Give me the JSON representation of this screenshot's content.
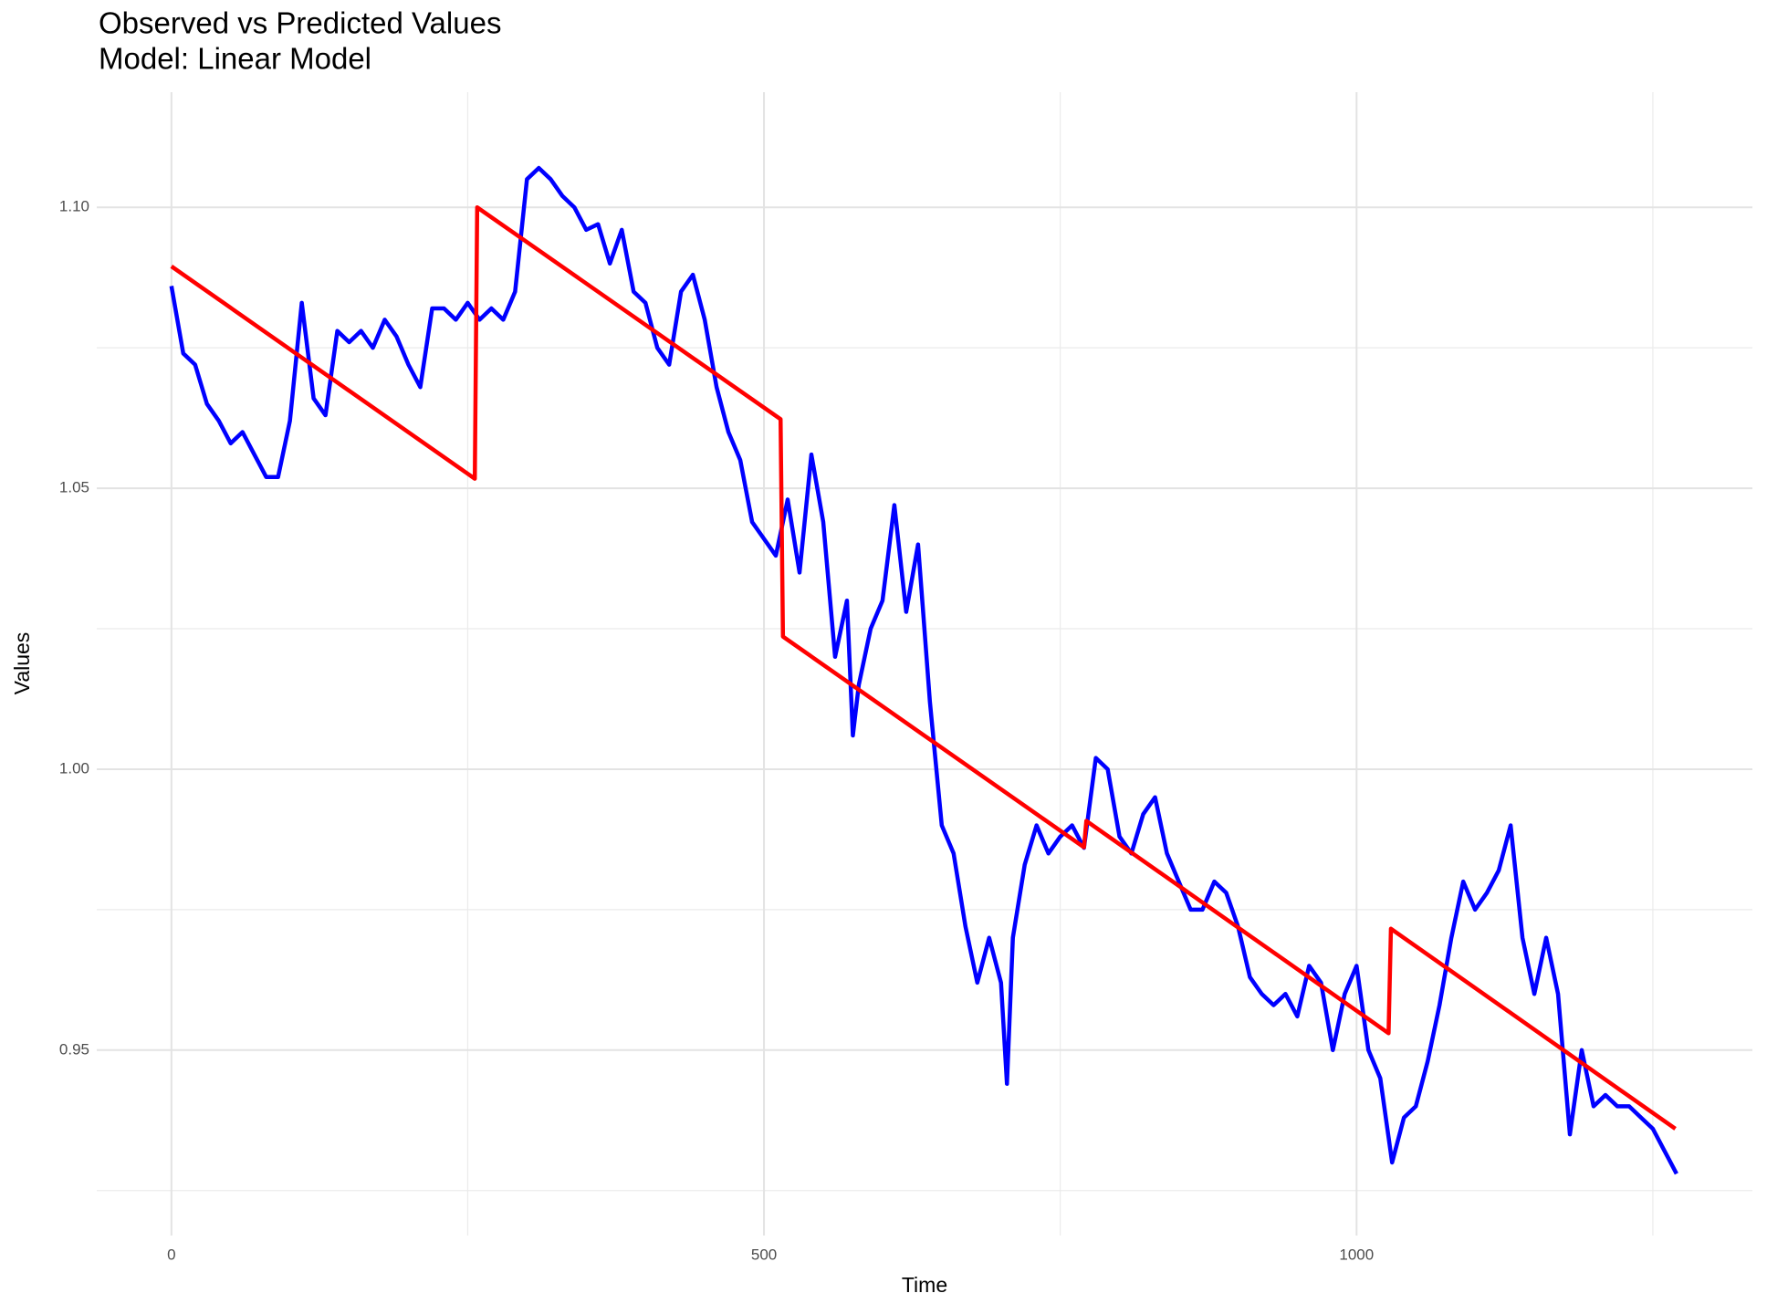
{
  "chart_data": {
    "type": "line",
    "title": "Observed vs Predicted Values",
    "subtitle": "Model: Linear Model",
    "x_label": "Time",
    "y_label": "Values",
    "xlim": [
      -63,
      1334
    ],
    "ylim": [
      0.917,
      1.1205
    ],
    "xticks": [
      0,
      500,
      1000
    ],
    "xminor": [
      250,
      750,
      1250
    ],
    "yticks": [
      {
        "value": 0.95,
        "label": "0.95"
      },
      {
        "value": 1.0,
        "label": "1.00"
      },
      {
        "value": 1.05,
        "label": "1.05"
      },
      {
        "value": 1.1,
        "label": "1.10"
      }
    ],
    "yminor": [
      0.925,
      0.975,
      1.025,
      1.075
    ],
    "grid": true,
    "series": [
      {
        "color": "#0000ff",
        "x": [
          0,
          10,
          20,
          30,
          40,
          50,
          60,
          70,
          80,
          90,
          100,
          110,
          120,
          130,
          140,
          150,
          160,
          170,
          180,
          190,
          200,
          210,
          220,
          230,
          240,
          250,
          260,
          270,
          280,
          290,
          300,
          310,
          320,
          330,
          340,
          350,
          360,
          370,
          380,
          390,
          400,
          410,
          420,
          430,
          440,
          450,
          460,
          470,
          480,
          490,
          500,
          510,
          520,
          530,
          540,
          550,
          560,
          570,
          575,
          580,
          590,
          600,
          610,
          620,
          630,
          640,
          650,
          660,
          670,
          680,
          690,
          700,
          705,
          710,
          720,
          730,
          740,
          750,
          760,
          770,
          780,
          790,
          800,
          810,
          820,
          830,
          840,
          850,
          860,
          870,
          880,
          890,
          900,
          910,
          920,
          930,
          940,
          950,
          960,
          970,
          980,
          990,
          1000,
          1010,
          1020,
          1030,
          1040,
          1050,
          1060,
          1070,
          1080,
          1090,
          1100,
          1110,
          1120,
          1130,
          1140,
          1150,
          1160,
          1170,
          1180,
          1190,
          1200,
          1210,
          1220,
          1230,
          1240,
          1250,
          1260,
          1270
        ],
        "values": [
          1.086,
          1.074,
          1.072,
          1.065,
          1.062,
          1.058,
          1.06,
          1.056,
          1.052,
          1.052,
          1.062,
          1.083,
          1.066,
          1.063,
          1.078,
          1.076,
          1.078,
          1.075,
          1.08,
          1.077,
          1.072,
          1.068,
          1.082,
          1.082,
          1.08,
          1.083,
          1.08,
          1.082,
          1.08,
          1.085,
          1.105,
          1.107,
          1.105,
          1.102,
          1.1,
          1.096,
          1.097,
          1.09,
          1.096,
          1.085,
          1.083,
          1.075,
          1.072,
          1.085,
          1.088,
          1.08,
          1.068,
          1.06,
          1.055,
          1.044,
          1.041,
          1.038,
          1.048,
          1.035,
          1.056,
          1.044,
          1.02,
          1.03,
          1.006,
          1.015,
          1.025,
          1.03,
          1.047,
          1.028,
          1.04,
          1.012,
          0.99,
          0.985,
          0.972,
          0.962,
          0.97,
          0.962,
          0.944,
          0.97,
          0.983,
          0.99,
          0.985,
          0.988,
          0.99,
          0.986,
          1.002,
          1.0,
          0.988,
          0.985,
          0.992,
          0.995,
          0.985,
          0.98,
          0.975,
          0.975,
          0.98,
          0.978,
          0.972,
          0.963,
          0.96,
          0.958,
          0.96,
          0.956,
          0.965,
          0.962,
          0.95,
          0.96,
          0.965,
          0.95,
          0.945,
          0.93,
          0.938,
          0.94,
          0.948,
          0.958,
          0.97,
          0.98,
          0.975,
          0.978,
          0.982,
          0.99,
          0.97,
          0.96,
          0.97,
          0.96,
          0.935,
          0.95,
          0.94,
          0.942,
          0.94,
          0.94,
          0.938,
          0.936,
          0.932,
          0.928
        ]
      },
      {
        "color": "#ff0000",
        "x": [
          0,
          256,
          258,
          514,
          516,
          770,
          772,
          1027,
          1029,
          1269
        ],
        "values": [
          1.0895,
          1.0517,
          1.1,
          1.0623,
          1.0236,
          0.9861,
          0.9908,
          0.953,
          0.9716,
          0.936
        ]
      }
    ]
  }
}
